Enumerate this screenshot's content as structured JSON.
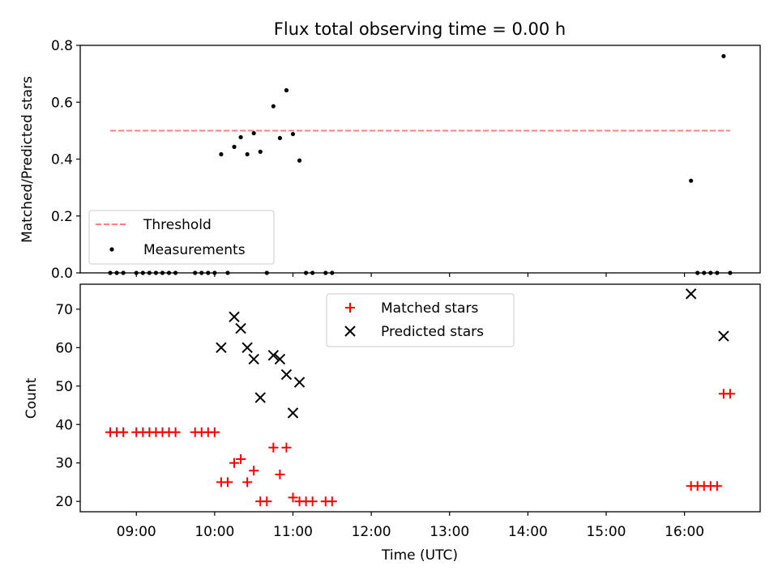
{
  "title": "Flux total observing time = 0.00 h",
  "colors": {
    "threshold": "#ff8080",
    "measurement": "#000000",
    "matched": "#ff0000",
    "predicted": "#000000"
  },
  "chart_data": [
    {
      "type": "scatter",
      "ylabel": "Matched/Predicted stars",
      "xlim": [
        "08:17",
        "16:58"
      ],
      "ylim": [
        0,
        0.8
      ],
      "yticks": [
        "0.0",
        "0.2",
        "0.4",
        "0.6",
        "0.8"
      ],
      "legend_placement": "lower-left",
      "threshold": {
        "name": "Threshold",
        "y": 0.5,
        "x": [
          "08:40",
          "16:35"
        ]
      },
      "series": [
        {
          "name": "Measurements",
          "points": [
            [
              "08:40",
              0
            ],
            [
              "08:45",
              0
            ],
            [
              "08:50",
              0
            ],
            [
              "09:00",
              0
            ],
            [
              "09:05",
              0
            ],
            [
              "09:10",
              0
            ],
            [
              "09:15",
              0
            ],
            [
              "09:20",
              0
            ],
            [
              "09:25",
              0
            ],
            [
              "09:30",
              0
            ],
            [
              "09:45",
              0
            ],
            [
              "09:50",
              0
            ],
            [
              "09:55",
              0
            ],
            [
              "10:00",
              0
            ],
            [
              "10:05",
              0.417
            ],
            [
              "10:10",
              0
            ],
            [
              "10:15",
              0.443
            ],
            [
              "10:20",
              0.477
            ],
            [
              "10:25",
              0.417
            ],
            [
              "10:30",
              0.491
            ],
            [
              "10:35",
              0.426
            ],
            [
              "10:40",
              0
            ],
            [
              "10:45",
              0.586
            ],
            [
              "10:50",
              0.474
            ],
            [
              "10:55",
              0.642
            ],
            [
              "11:00",
              0.488
            ],
            [
              "11:05",
              0.395
            ],
            [
              "11:10",
              0
            ],
            [
              "11:15",
              0
            ],
            [
              "11:25",
              0
            ],
            [
              "11:30",
              0
            ],
            [
              "16:05",
              0.324
            ],
            [
              "16:10",
              0
            ],
            [
              "16:15",
              0
            ],
            [
              "16:20",
              0
            ],
            [
              "16:25",
              0
            ],
            [
              "16:30",
              0.762
            ],
            [
              "16:35",
              0
            ]
          ]
        }
      ]
    },
    {
      "type": "scatter",
      "xlabel": "Time (UTC)",
      "ylabel": "Count",
      "xlim": [
        "08:17",
        "16:58"
      ],
      "ylim": [
        17.3,
        76.5
      ],
      "yticks": [
        "20",
        "30",
        "40",
        "50",
        "60",
        "70"
      ],
      "xticks": [
        "09:00",
        "10:00",
        "11:00",
        "12:00",
        "13:00",
        "14:00",
        "15:00",
        "16:00"
      ],
      "legend_placement": "upper-center",
      "series": [
        {
          "name": "Matched stars",
          "marker": "+",
          "points": [
            [
              "08:40",
              38
            ],
            [
              "08:45",
              38
            ],
            [
              "08:50",
              38
            ],
            [
              "09:00",
              38
            ],
            [
              "09:05",
              38
            ],
            [
              "09:10",
              38
            ],
            [
              "09:15",
              38
            ],
            [
              "09:20",
              38
            ],
            [
              "09:25",
              38
            ],
            [
              "09:30",
              38
            ],
            [
              "09:45",
              38
            ],
            [
              "09:50",
              38
            ],
            [
              "09:55",
              38
            ],
            [
              "10:00",
              38
            ],
            [
              "10:05",
              25
            ],
            [
              "10:10",
              25
            ],
            [
              "10:15",
              30
            ],
            [
              "10:20",
              31
            ],
            [
              "10:25",
              25
            ],
            [
              "10:30",
              28
            ],
            [
              "10:35",
              20
            ],
            [
              "10:40",
              20
            ],
            [
              "10:45",
              34
            ],
            [
              "10:50",
              27
            ],
            [
              "10:55",
              34
            ],
            [
              "11:00",
              21
            ],
            [
              "11:05",
              20
            ],
            [
              "11:10",
              20
            ],
            [
              "11:15",
              20
            ],
            [
              "11:25",
              20
            ],
            [
              "11:30",
              20
            ],
            [
              "16:05",
              24
            ],
            [
              "16:10",
              24
            ],
            [
              "16:15",
              24
            ],
            [
              "16:20",
              24
            ],
            [
              "16:25",
              24
            ],
            [
              "16:30",
              48
            ],
            [
              "16:35",
              48
            ]
          ]
        },
        {
          "name": "Predicted stars",
          "marker": "x",
          "points": [
            [
              "10:05",
              60
            ],
            [
              "10:15",
              68
            ],
            [
              "10:20",
              65
            ],
            [
              "10:25",
              60
            ],
            [
              "10:30",
              57
            ],
            [
              "10:35",
              47
            ],
            [
              "10:45",
              58
            ],
            [
              "10:50",
              57
            ],
            [
              "10:55",
              53
            ],
            [
              "11:00",
              43
            ],
            [
              "11:05",
              51
            ],
            [
              "16:05",
              74
            ],
            [
              "16:30",
              63
            ]
          ]
        }
      ]
    }
  ]
}
